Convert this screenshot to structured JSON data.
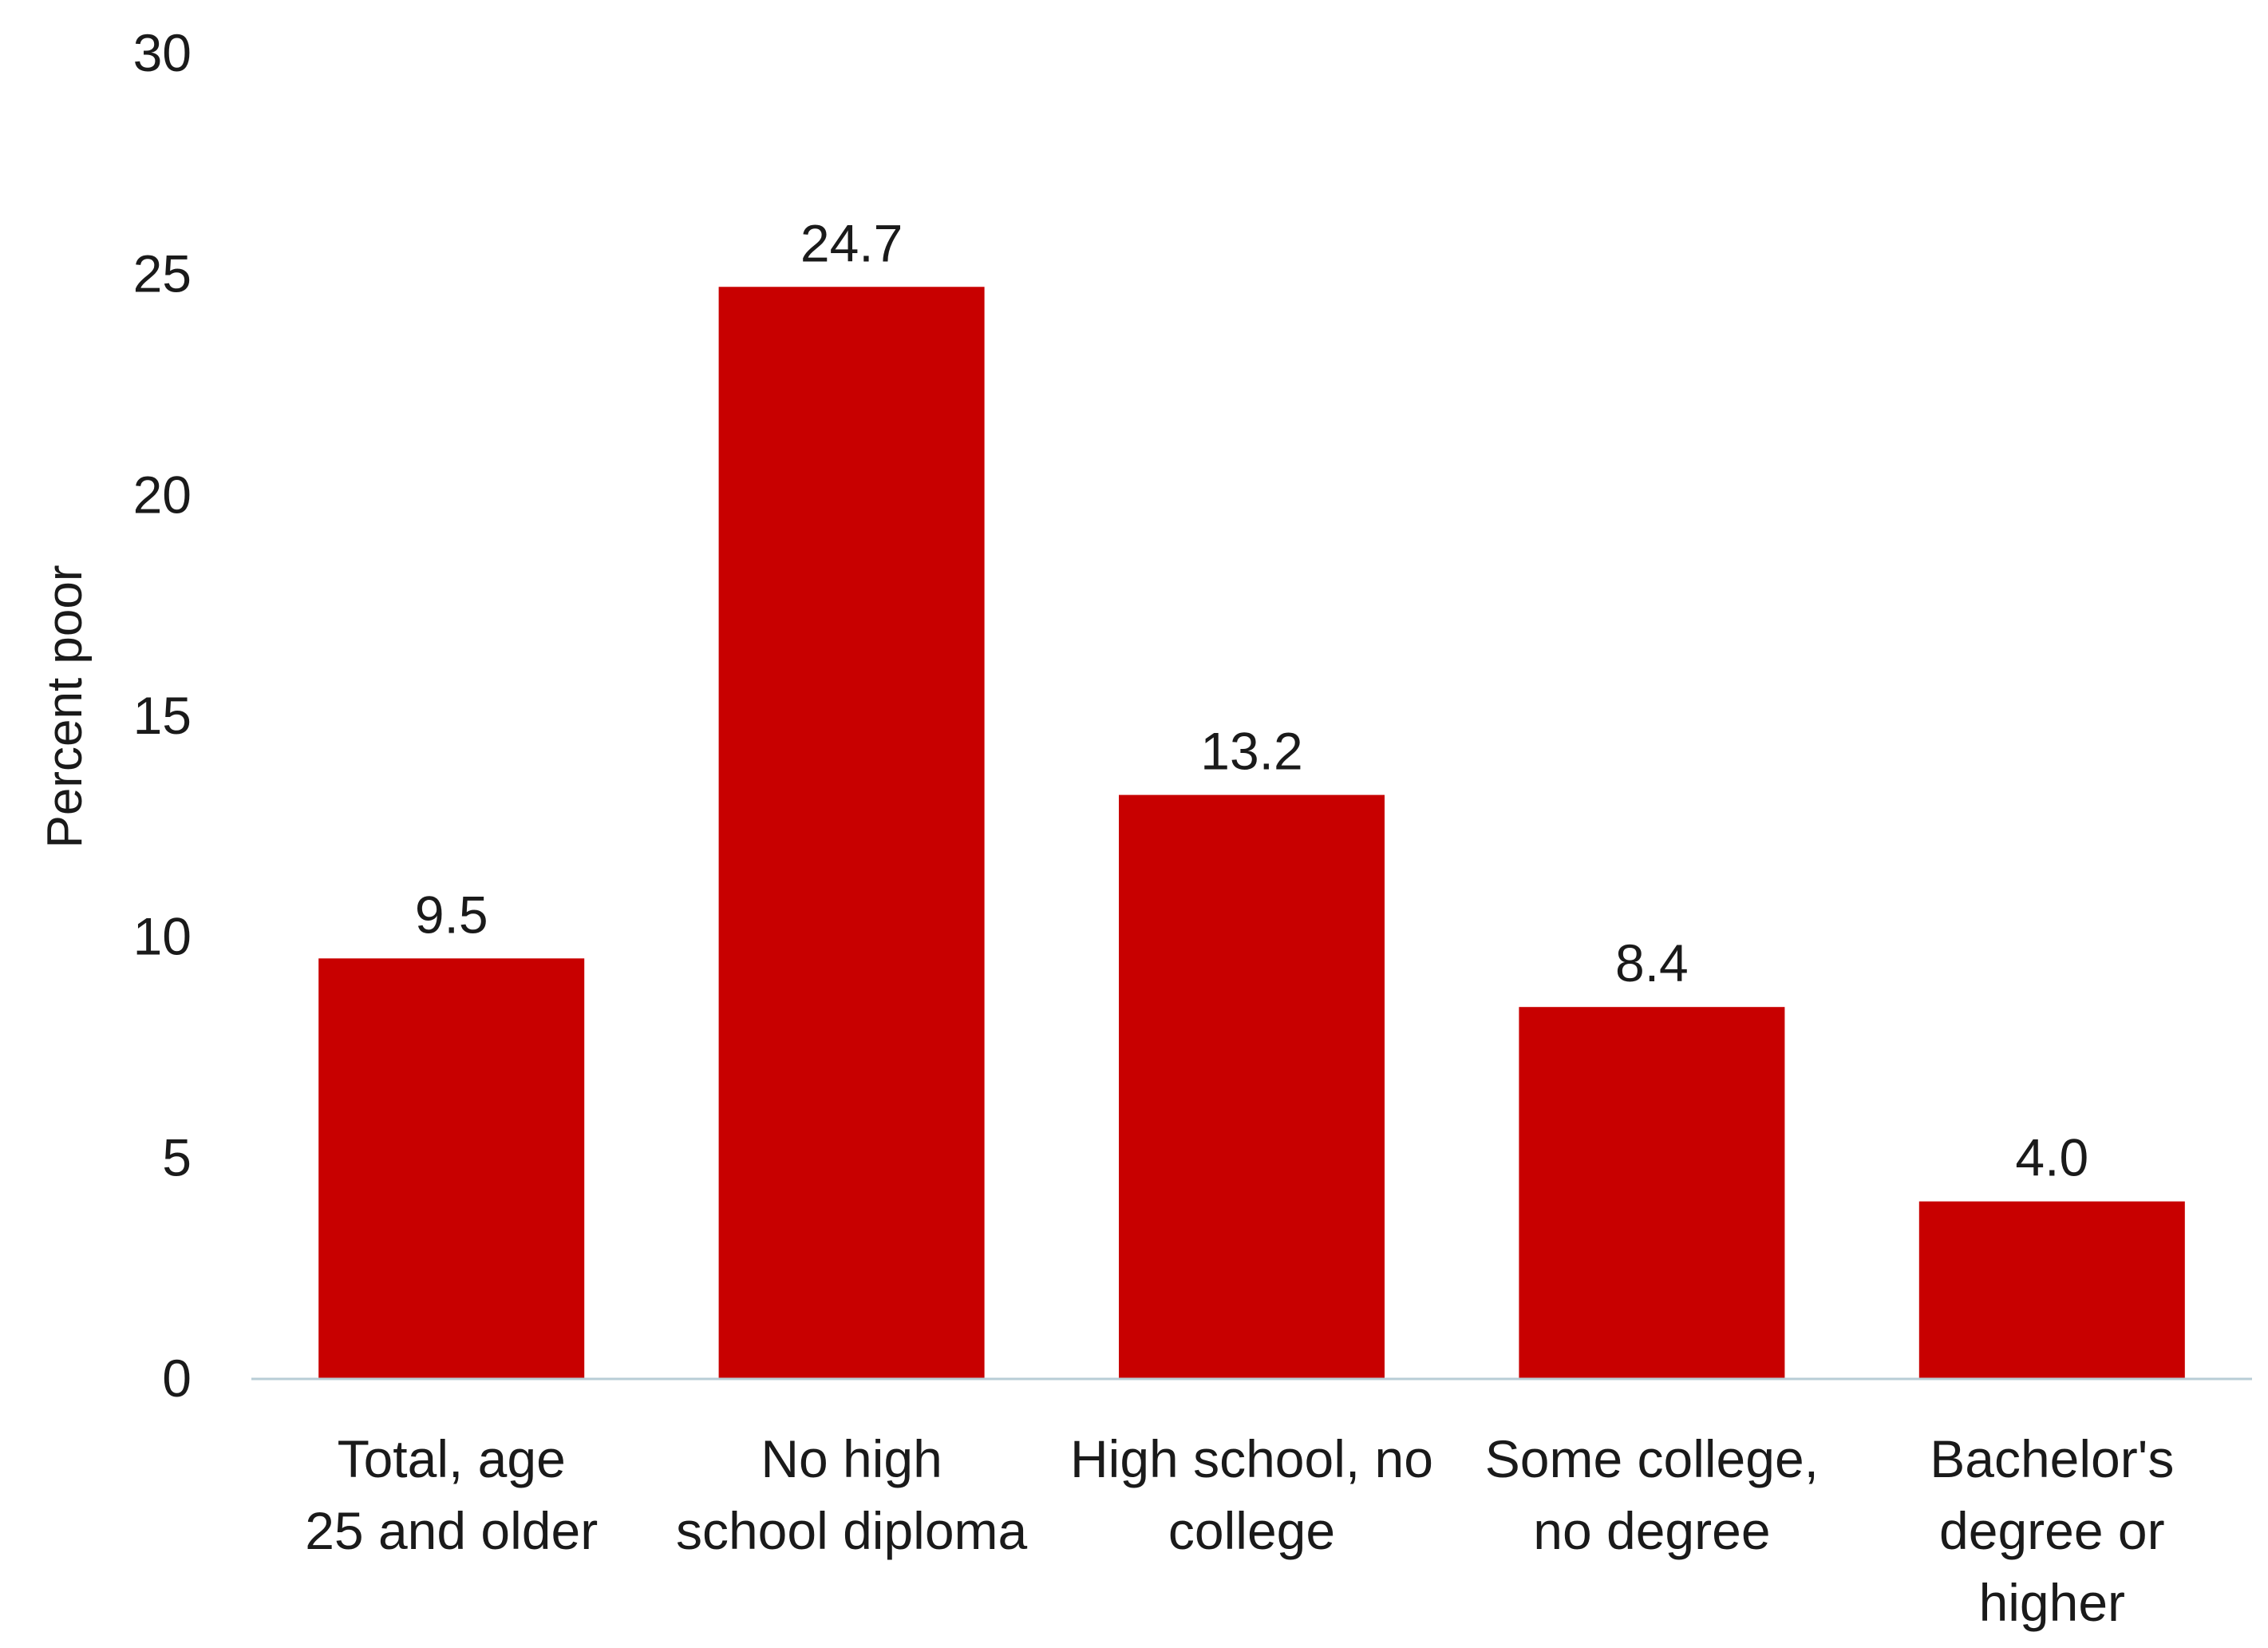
{
  "chart_data": {
    "type": "bar",
    "title": "",
    "xlabel": "",
    "ylabel": "Percent poor",
    "ylim": [
      0,
      30
    ],
    "yticks": [
      0,
      5,
      10,
      15,
      20,
      25,
      30
    ],
    "grid": false,
    "legend": "none",
    "categories": [
      [
        "Total, age",
        "25 and older"
      ],
      [
        "No high",
        "school diploma"
      ],
      [
        "High school, no",
        "college"
      ],
      [
        "Some college,",
        "no degree"
      ],
      [
        "Bachelor's",
        "degree or",
        "higher"
      ]
    ],
    "values": [
      9.5,
      24.7,
      13.2,
      8.4,
      4.0
    ],
    "value_labels": [
      "9.5",
      "24.7",
      "13.2",
      "8.4",
      "4.0"
    ],
    "colors": {
      "bar": "#c80000",
      "axis": "#b8cdd6",
      "text": "#1a1a1a"
    }
  }
}
